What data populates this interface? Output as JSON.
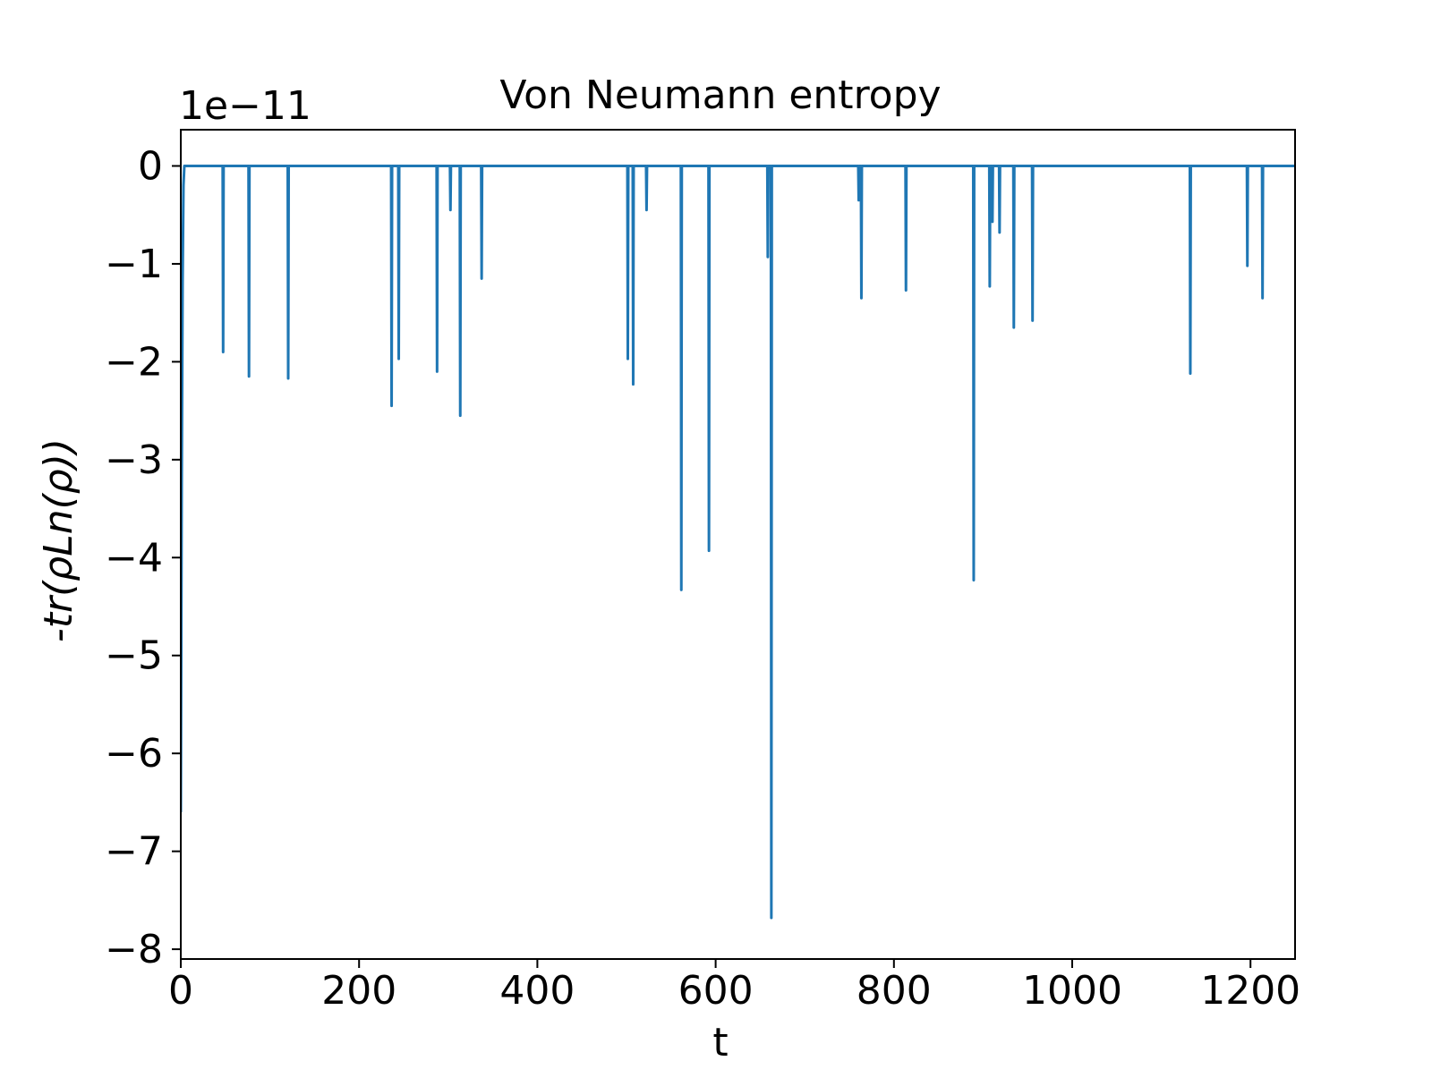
{
  "chart_data": {
    "type": "line",
    "title": "Von Neumann entropy",
    "xlabel": "t",
    "ylabel": "-tr(ρLn(ρ))",
    "y_offset_label": "1e−11",
    "y_scale": 1e-11,
    "xlim": [
      0,
      1250
    ],
    "ylim": [
      -8.1,
      0.37
    ],
    "xticks": [
      0,
      200,
      400,
      600,
      800,
      1000,
      1200
    ],
    "xtick_labels": [
      "0",
      "200",
      "400",
      "600",
      "800",
      "1000",
      "1200"
    ],
    "yticks": [
      0,
      -1,
      -2,
      -3,
      -4,
      -5,
      -6,
      -7,
      -8
    ],
    "ytick_labels": [
      "0",
      "−1",
      "−2",
      "−3",
      "−4",
      "−5",
      "−6",
      "−7",
      "−8"
    ],
    "grid": false,
    "legend": false,
    "series": [
      {
        "color": "#1f77b4",
        "x": [
          0,
          1,
          2,
          3,
          4,
          47,
          47.5,
          48,
          76,
          76.5,
          77,
          120,
          120.5,
          121,
          236,
          236.5,
          237,
          244,
          244.5,
          245,
          287,
          287.5,
          288,
          302,
          302.5,
          303,
          313,
          313.5,
          314,
          337,
          337.5,
          338,
          501,
          501.5,
          502,
          507,
          507.5,
          508,
          522,
          522.5,
          523,
          561,
          561.5,
          562,
          592,
          592.5,
          593,
          658,
          658.5,
          659,
          662,
          662.5,
          663,
          760,
          760.5,
          761,
          763,
          763.5,
          764,
          813,
          813.5,
          814,
          889,
          889.5,
          890,
          907,
          907.5,
          908,
          910,
          910.5,
          911,
          918,
          918.5,
          919,
          934,
          934.5,
          935,
          955,
          955.5,
          956,
          1132,
          1132.5,
          1133,
          1196,
          1196.5,
          1197,
          1213,
          1213.5,
          1214,
          1250
        ],
        "y": [
          -6.6,
          -3.3,
          -1.2,
          -0.2,
          0,
          0,
          -1.9,
          0,
          0,
          -2.15,
          0,
          0,
          -2.17,
          0,
          0,
          -2.45,
          0,
          0,
          -1.97,
          0,
          0,
          -2.1,
          0,
          0,
          -0.45,
          0,
          0,
          -2.55,
          0,
          0,
          -1.15,
          0,
          0,
          -1.97,
          0,
          0,
          -2.23,
          0,
          0,
          -0.45,
          0,
          0,
          -4.33,
          0,
          0,
          -3.93,
          0,
          0,
          -0.93,
          0,
          0,
          -7.68,
          0,
          0,
          -0.35,
          0,
          0,
          -1.35,
          0,
          0,
          -1.27,
          0,
          0,
          -4.23,
          0,
          0,
          -1.23,
          0,
          0,
          -0.57,
          0,
          0,
          -0.68,
          0,
          0,
          -1.65,
          0,
          0,
          -1.58,
          0,
          0,
          -2.12,
          0,
          0,
          -1.02,
          0,
          0,
          -1.35,
          0,
          0
        ]
      }
    ]
  }
}
